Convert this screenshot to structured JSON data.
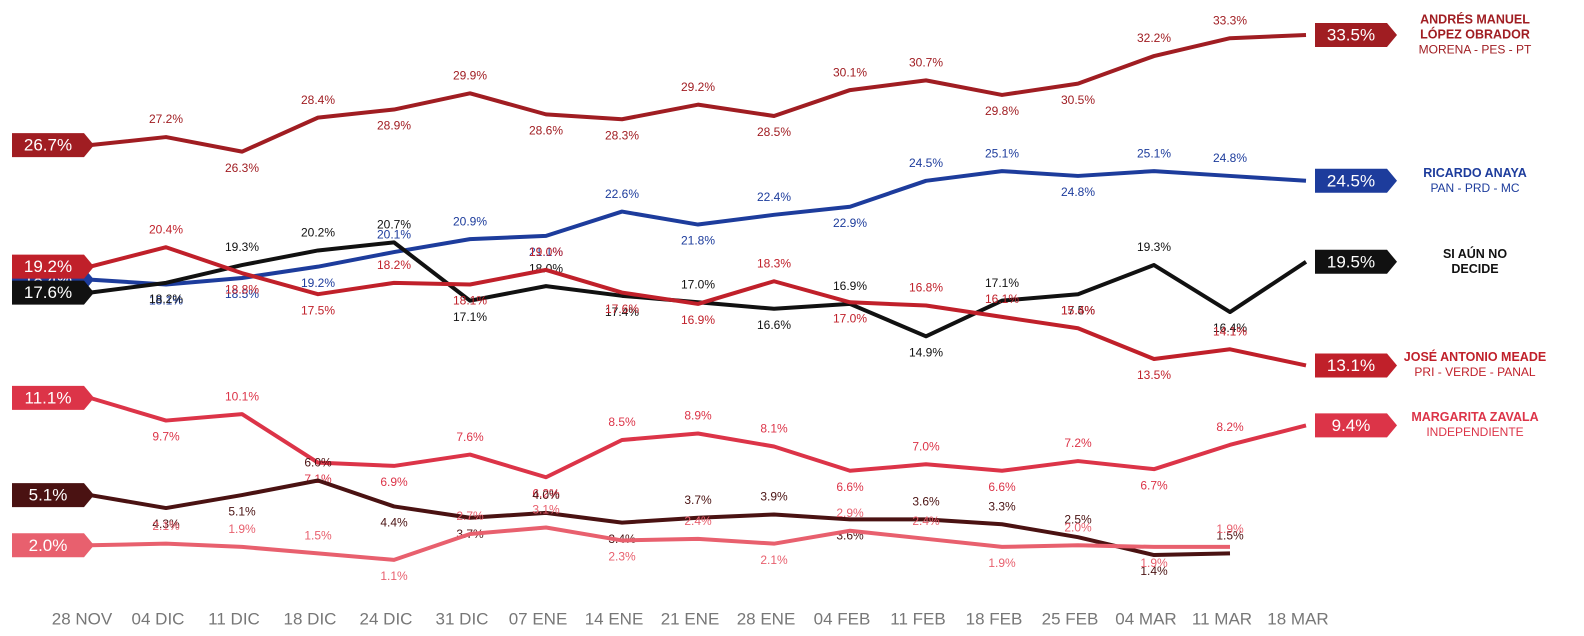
{
  "chart_data": {
    "type": "line",
    "categories": [
      "28 NOV",
      "04 DIC",
      "11 DIC",
      "18 DIC",
      "24 DIC",
      "31 DIC",
      "07 ENE",
      "14 ENE",
      "21 ENE",
      "28 ENE",
      "04 FEB",
      "11 FEB",
      "18 FEB",
      "25 FEB",
      "04 MAR",
      "11 MAR",
      "18 MAR"
    ],
    "series": [
      {
        "name": "ANDRÉS MANUEL LÓPEZ OBRADOR",
        "party": "MORENA - PES - PT",
        "color": "#a01d22",
        "values": [
          26.7,
          27.2,
          26.3,
          28.4,
          28.9,
          29.9,
          28.6,
          28.3,
          29.2,
          28.5,
          30.1,
          30.7,
          29.8,
          30.5,
          32.2,
          33.3,
          33.5
        ],
        "value_labels": [
          "26.7%",
          "27.2%",
          "26.3%",
          "28.4%",
          "28.9%",
          "29.9%",
          "28.6%",
          "28.3%",
          "29.2%",
          "28.5%",
          "30.1%",
          "30.7%",
          "29.8%",
          "30.5%",
          "32.2%",
          "33.3%",
          "33.5%"
        ]
      },
      {
        "name": "RICARDO ANAYA",
        "party": "PAN - PRD - MC",
        "color": "#1d3c9c",
        "values": [
          18.4,
          18.1,
          18.5,
          19.2,
          20.1,
          20.9,
          21.1,
          22.6,
          21.8,
          22.4,
          22.9,
          24.5,
          25.1,
          24.8,
          25.1,
          24.8,
          24.5
        ],
        "value_labels": [
          "18.4%",
          "18.1%",
          "18.5%",
          "19.2%",
          "20.1%",
          "20.9%",
          "21.1%",
          "22.6%",
          "21.8%",
          "22.4%",
          "22.9%",
          "24.5%",
          "25.1%",
          "24.8%",
          "25.1%",
          "24.8%",
          "24.5%"
        ]
      },
      {
        "name": "SI AÚN NO DECIDE",
        "color": "#111111",
        "values": [
          17.6,
          18.2,
          19.3,
          20.2,
          20.7,
          17.1,
          18.0,
          17.4,
          17.0,
          16.6,
          16.9,
          14.9,
          17.1,
          17.5,
          19.3,
          16.4,
          19.5
        ],
        "value_labels": [
          "17.6%",
          "18.2%",
          "19.3%",
          "20.2%",
          "20.7%",
          "17.1%",
          "18.0%",
          "17.4%",
          "17.0%",
          "16.6%",
          "16.9%",
          "14.9%",
          "17.1%",
          "17.5%",
          "19.3%",
          "16.4%",
          "19.5%"
        ]
      },
      {
        "name": "JOSÉ ANTONIO MEADE",
        "party": "PRI - VERDE - PANAL",
        "color": "#c0202a",
        "values": [
          19.2,
          20.4,
          18.8,
          17.5,
          18.2,
          18.1,
          19.0,
          17.6,
          16.9,
          18.3,
          17.0,
          16.8,
          16.1,
          15.4,
          13.5,
          14.1,
          13.1
        ],
        "value_labels": [
          "19.2%",
          "20.4%",
          "18.8%",
          "17.5%",
          "18.2%",
          "18.1%",
          "19.0%",
          "17.6%",
          "16.9%",
          "18.3%",
          "17.0%",
          "16.8%",
          "16.1%",
          "15.4%",
          "13.5%",
          "14.1%",
          "13.1%"
        ]
      },
      {
        "name": "MARGARITA ZAVALA",
        "party": "INDEPENDIENTE",
        "color": "#dc3448",
        "values": [
          11.1,
          9.7,
          10.1,
          7.1,
          6.9,
          7.6,
          6.2,
          8.5,
          8.9,
          8.1,
          6.6,
          7.0,
          6.6,
          7.2,
          6.7,
          8.2,
          9.4
        ],
        "value_labels": [
          "11.1%",
          "9.7%",
          "10.1%",
          "7.1%",
          "6.9%",
          "7.6%",
          "6.2%",
          "8.5%",
          "8.9%",
          "8.1%",
          "6.6%",
          "7.0%",
          "6.6%",
          "7.2%",
          "6.7%",
          "8.2%",
          "9.4%"
        ]
      },
      {
        "color": "#4a1212",
        "values": [
          5.1,
          4.3,
          5.1,
          6.0,
          4.4,
          3.7,
          4.0,
          3.4,
          3.7,
          3.9,
          3.6,
          3.6,
          3.3,
          2.5,
          1.4,
          1.5,
          null
        ],
        "value_labels": [
          "5.1%",
          "4.3%",
          "5.1%",
          "6.0%",
          "4.4%",
          "3.7%",
          "4.0%",
          "3.4%",
          "3.7%",
          "3.9%",
          "3.6%",
          "3.6%",
          "3.3%",
          "2.5%",
          "1.4%",
          "1.5%",
          null
        ]
      },
      {
        "color": "#e8606e",
        "values": [
          2.0,
          2.1,
          1.9,
          1.5,
          1.1,
          2.7,
          3.1,
          2.3,
          2.4,
          2.1,
          2.9,
          2.4,
          1.9,
          2.0,
          1.9,
          1.9,
          null
        ],
        "value_labels": [
          "2.0%",
          "2.1%",
          "1.9%",
          "1.5%",
          "1.1%",
          "2.7%",
          "3.1%",
          "2.3%",
          "2.4%",
          "2.1%",
          "2.9%",
          "2.4%",
          "1.9%",
          "2.0%",
          "1.9%",
          "1.9%",
          null
        ]
      }
    ]
  }
}
